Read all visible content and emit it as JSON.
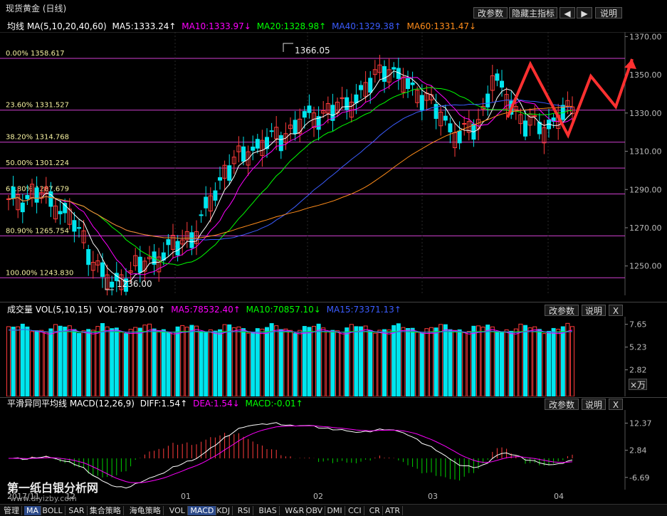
{
  "title": "现货黄金 (日线)",
  "top_buttons": {
    "params": "改参数",
    "hide": "隐藏主指标",
    "prev": "◀",
    "next": "▶",
    "help": "说明"
  },
  "ma_header": {
    "label": "均线 MA(5,10,20,40,60)",
    "ma5": "MA5:1333.24↑",
    "ma10": "MA10:1333.97↓",
    "ma20": "MA20:1328.98↑",
    "ma40": "MA40:1329.38↑",
    "ma60": "MA60:1331.47↓"
  },
  "fib_levels": [
    {
      "label": "0.00% 1358.617",
      "price": 1358.617
    },
    {
      "label": "23.60% 1331.527",
      "price": 1331.527
    },
    {
      "label": "38.20% 1314.768",
      "price": 1314.768
    },
    {
      "label": "50.00% 1301.224",
      "price": 1301.224
    },
    {
      "label": "61.80% 1287.679",
      "price": 1287.679
    },
    {
      "label": "80.90% 1265.754",
      "price": 1265.754
    },
    {
      "label": "100.00% 1243.830",
      "price": 1243.83
    }
  ],
  "price_axis": [
    "1370.00",
    "1350.00",
    "1330.00",
    "1310.00",
    "1290.00",
    "1270.00",
    "1250.00"
  ],
  "high_label": "1366.05",
  "low_label": "1236.00",
  "volume": {
    "label": "成交量 VOL(5,10,15)",
    "vol": "VOL:78979.00↑",
    "ma5": "MA5:78532.40↑",
    "ma10": "MA10:70857.10↓",
    "ma15": "MA15:73371.13↑",
    "params": "改参数",
    "help": "说明",
    "close": "X",
    "axis": [
      "7.65",
      "5.23",
      "2.82"
    ],
    "unit": "×万"
  },
  "macd": {
    "label": "平滑异同平均线 MACD(12,26,9)",
    "diff": "DIFF:1.54↑",
    "dea": "DEA:1.54↓",
    "macd": "MACD:-0.01↑",
    "params": "改参数",
    "help": "说明",
    "close": "X",
    "axis": [
      "12.37",
      "2.84",
      "-6.69"
    ]
  },
  "date_axis": [
    "2017/11",
    "12",
    "01",
    "02",
    "03",
    "04"
  ],
  "watermark": "第一纸白银分析网",
  "watermark_url": "www.diyizby.com",
  "tabs": [
    "管理",
    "MA",
    "BOLL",
    "SAR",
    "集合策略",
    "海龟策略",
    "VOL",
    "MACD",
    "KDJ",
    "RSI",
    "BIAS",
    "W&R",
    "OBV",
    "DMI",
    "CCI",
    "CR",
    "ATR"
  ],
  "active_tabs": [
    "MA",
    "MACD"
  ],
  "colors": {
    "up": "#ff3b3b",
    "down": "#00e5ee",
    "ma5": "#ffffff",
    "ma10": "#ff00ff",
    "ma20": "#00ff00",
    "ma40": "#3b5cff",
    "ma60": "#ff8c1a",
    "fib": "#d040d0",
    "macd_diff": "#ffffff",
    "macd_dea": "#ff00ff"
  }
}
